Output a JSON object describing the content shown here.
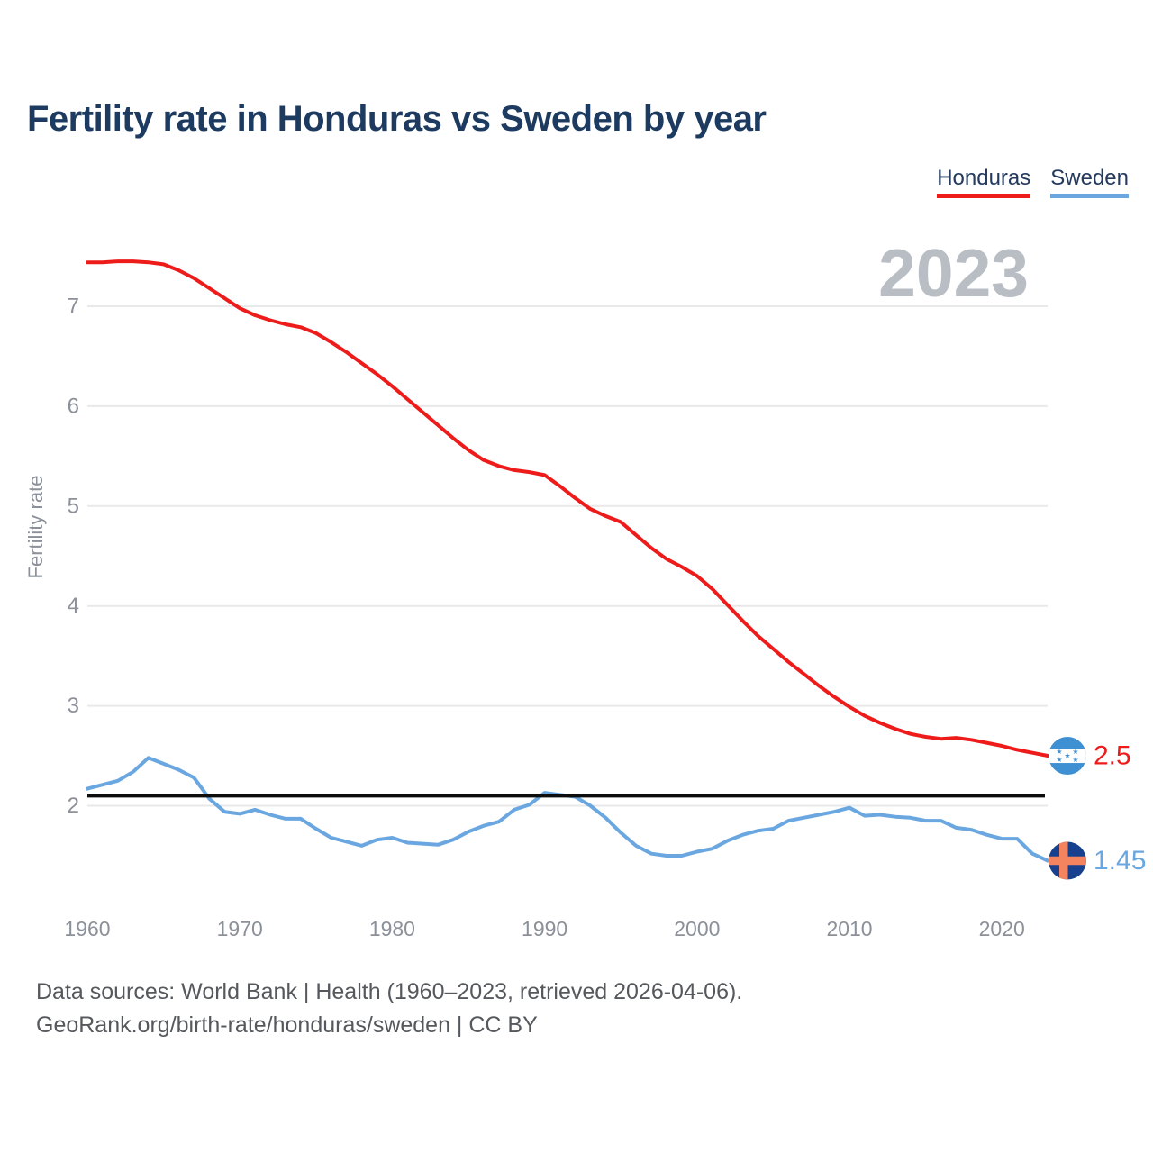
{
  "title": "Fertility rate in Honduras vs Sweden by year",
  "watermark": "2023",
  "legend": [
    {
      "label": "Honduras",
      "color": "#ee1b1b"
    },
    {
      "label": "Sweden",
      "color": "#6aa7e0"
    }
  ],
  "y_axis": {
    "label": "Fertility rate",
    "ticks": [
      7,
      6,
      5,
      4,
      3,
      2
    ]
  },
  "x_axis": {
    "ticks": [
      1960,
      1970,
      1980,
      1990,
      2000,
      2010,
      2020
    ]
  },
  "reference_line": {
    "value": 2.1,
    "color": "#0d0d0d"
  },
  "end_labels": [
    {
      "series": "Honduras",
      "value": "2.5",
      "flag": "honduras"
    },
    {
      "series": "Sweden",
      "value": "1.45",
      "flag": "sweden"
    }
  ],
  "colors": {
    "title_text": "#1d3b60",
    "legend_text": "#243a5e",
    "axis_text": "#8b9099",
    "grid": "#e9e9ea",
    "watermark": "#b9bdc4",
    "footer_text": "#55585c",
    "honduras_flag": {
      "background": "#3f8fd3",
      "band": "#ffffff",
      "stars": "#3f8fd3"
    },
    "sweden_flag": {
      "background": "#17418f",
      "cross": "#f4845f"
    }
  },
  "footer": {
    "line1": "Data sources: World Bank | Health (1960–2023, retrieved 2026-04-06).",
    "line2": "GeoRank.org/birth-rate/honduras/sweden | CC BY"
  },
  "chart_data": {
    "type": "line",
    "title": "Fertility rate in Honduras vs Sweden by year",
    "xlabel": "",
    "ylabel": "Fertility rate",
    "xlim": [
      1960,
      2023
    ],
    "ylim": [
      1.2,
      7.6
    ],
    "grid": "horizontal",
    "legend_position": "top-right",
    "highlighted_year": 2023,
    "reference_line_value": 2.1,
    "x": [
      1960,
      1961,
      1962,
      1963,
      1964,
      1965,
      1966,
      1967,
      1968,
      1969,
      1970,
      1971,
      1972,
      1973,
      1974,
      1975,
      1976,
      1977,
      1978,
      1979,
      1980,
      1981,
      1982,
      1983,
      1984,
      1985,
      1986,
      1987,
      1988,
      1989,
      1990,
      1991,
      1992,
      1993,
      1994,
      1995,
      1996,
      1997,
      1998,
      1999,
      2000,
      2001,
      2002,
      2003,
      2004,
      2005,
      2006,
      2007,
      2008,
      2009,
      2010,
      2011,
      2012,
      2013,
      2014,
      2015,
      2016,
      2017,
      2018,
      2019,
      2020,
      2021,
      2022,
      2023
    ],
    "series": [
      {
        "name": "Honduras",
        "color": "#ee1b1b",
        "end_label": "2.5",
        "values": [
          7.44,
          7.44,
          7.45,
          7.45,
          7.44,
          7.42,
          7.36,
          7.28,
          7.18,
          7.08,
          6.98,
          6.91,
          6.86,
          6.82,
          6.79,
          6.73,
          6.64,
          6.54,
          6.43,
          6.32,
          6.2,
          6.07,
          5.94,
          5.81,
          5.68,
          5.56,
          5.46,
          5.4,
          5.36,
          5.34,
          5.31,
          5.2,
          5.08,
          4.97,
          4.9,
          4.84,
          4.71,
          4.58,
          4.47,
          4.39,
          4.3,
          4.17,
          4.01,
          3.85,
          3.7,
          3.57,
          3.44,
          3.32,
          3.2,
          3.09,
          2.99,
          2.9,
          2.83,
          2.77,
          2.72,
          2.69,
          2.67,
          2.68,
          2.66,
          2.63,
          2.6,
          2.56,
          2.53,
          2.5
        ]
      },
      {
        "name": "Sweden",
        "color": "#6aa7e0",
        "end_label": "1.45",
        "values": [
          2.17,
          2.21,
          2.25,
          2.34,
          2.48,
          2.42,
          2.36,
          2.28,
          2.07,
          1.94,
          1.92,
          1.96,
          1.91,
          1.87,
          1.87,
          1.77,
          1.68,
          1.64,
          1.6,
          1.66,
          1.68,
          1.63,
          1.62,
          1.61,
          1.66,
          1.74,
          1.8,
          1.84,
          1.96,
          2.01,
          2.13,
          2.11,
          2.09,
          2.0,
          1.88,
          1.73,
          1.6,
          1.52,
          1.5,
          1.5,
          1.54,
          1.57,
          1.65,
          1.71,
          1.75,
          1.77,
          1.85,
          1.88,
          1.91,
          1.94,
          1.98,
          1.9,
          1.91,
          1.89,
          1.88,
          1.85,
          1.85,
          1.78,
          1.76,
          1.71,
          1.67,
          1.67,
          1.52,
          1.45
        ]
      }
    ]
  }
}
